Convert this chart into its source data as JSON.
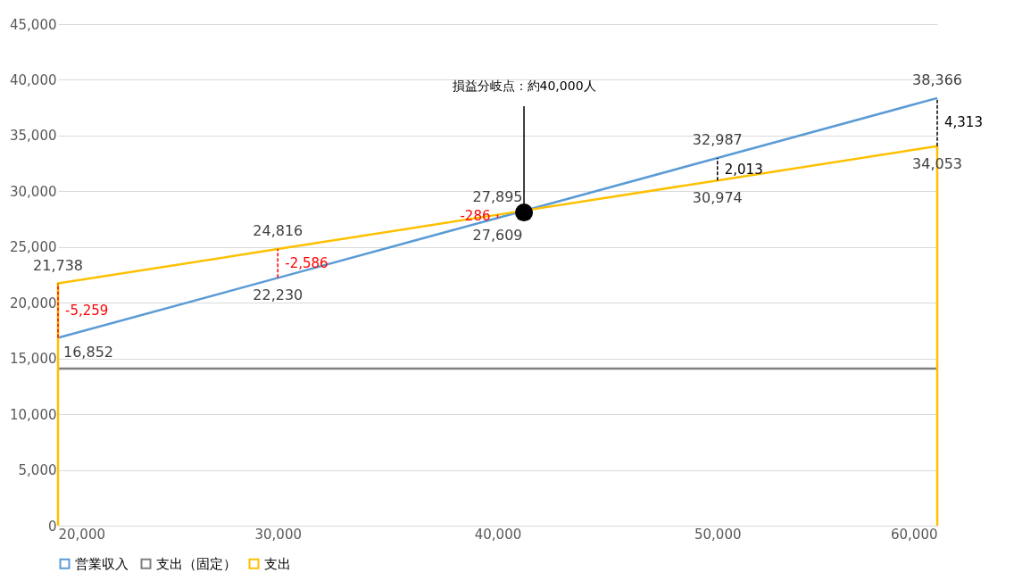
{
  "chart_data": {
    "type": "line",
    "x": [
      20000,
      30000,
      40000,
      50000,
      60000
    ],
    "series": [
      {
        "name": "営業収入",
        "color": "#5b9bd5",
        "values": [
          16852,
          22230,
          27609,
          32987,
          38366
        ],
        "value_labels": [
          "16,852",
          "22,230",
          "27,609",
          "32,987",
          "38,366"
        ]
      },
      {
        "name": "支出（固定）",
        "color": "#7f7f7f",
        "values": [
          14100,
          14100,
          14100,
          14100,
          14100
        ]
      },
      {
        "name": "支出",
        "color": "#ffc000",
        "x": [
          20000,
          20000,
          30000,
          40000,
          50000,
          60000,
          60000
        ],
        "values": [
          0,
          21738,
          24816,
          27895,
          30974,
          34053,
          0
        ],
        "value_labels": [
          null,
          "21,738",
          "24,816",
          "27,895",
          "30,974",
          "34,053",
          null
        ]
      }
    ],
    "xlim": [
      20000,
      60000
    ],
    "xticks": [
      {
        "value": 20000,
        "label": "20,000"
      },
      {
        "value": 30000,
        "label": "30,000"
      },
      {
        "value": 40000,
        "label": "40,000"
      },
      {
        "value": 50000,
        "label": "50,000"
      },
      {
        "value": 60000,
        "label": "60,000"
      }
    ],
    "ylim": [
      0,
      45000
    ],
    "yticks": [
      0,
      {
        "value": 5000,
        "label": "5,000"
      },
      {
        "value": 10000,
        "label": "10,000"
      },
      {
        "value": 15000,
        "label": "15,000"
      },
      {
        "value": 20000,
        "label": "20,000"
      },
      {
        "value": 25000,
        "label": "25,000"
      },
      {
        "value": 30000,
        "label": "30,000"
      },
      {
        "value": 35000,
        "label": "35,000"
      },
      {
        "value": 40000,
        "label": "40,000"
      },
      {
        "value": 45000,
        "label": "45,000"
      }
    ],
    "annotations": [
      "-5,259",
      "-2,586",
      "-286",
      "2,013",
      "4,313",
      {
        "text": "損益分岐点：約40,000人",
        "x": 41200,
        "y": 28100
      }
    ],
    "grid": "y",
    "legend": "bottom",
    "marker": "none",
    "line_style": "solid"
  }
}
